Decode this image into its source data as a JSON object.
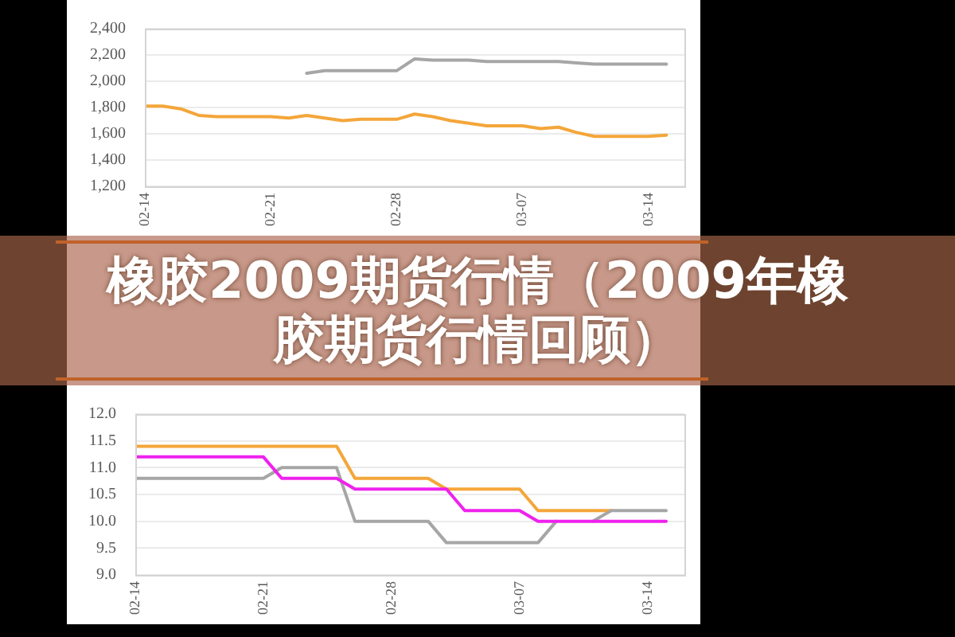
{
  "chart_data": [
    {
      "type": "line",
      "title": "橡胶2009期货行情（2009年橡胶期货行情回顾）",
      "x": [
        "--02-14",
        "--02-15",
        "--02-16",
        "--02-17",
        "--02-18",
        "--02-19",
        "--02-20",
        "--02-21",
        "--02-22",
        "--02-23",
        "--02-24",
        "--02-25",
        "--02-26",
        "--02-27",
        "--02-28",
        "--03-01",
        "--03-02",
        "--03-03",
        "--03-04",
        "--03-05",
        "--03-06",
        "--03-07",
        "--03-08",
        "--03-09",
        "--03-10",
        "--03-11",
        "--03-12",
        "--03-13",
        "--03-14",
        "--03-15"
      ],
      "series": [
        {
          "color": "#f4a63a",
          "values": [
            1810,
            1810,
            1790,
            1740,
            1730,
            1730,
            1730,
            1730,
            1720,
            1740,
            1720,
            1700,
            1710,
            1710,
            1710,
            1750,
            1730,
            1700,
            1680,
            1660,
            1660,
            1660,
            1640,
            1650,
            1610,
            1580,
            1580,
            1580,
            1580,
            1590
          ]
        },
        {
          "color": "#a6a6a6",
          "values": [
            null,
            null,
            null,
            null,
            null,
            null,
            null,
            null,
            null,
            2060,
            2080,
            2080,
            2080,
            2080,
            2080,
            2170,
            2160,
            2160,
            2160,
            2150,
            2150,
            2150,
            2150,
            2150,
            2140,
            2130,
            2130,
            2130,
            2130,
            2130
          ]
        }
      ],
      "xlim": [
        "--02-14",
        "--03-16"
      ],
      "xticks": [
        {
          "value": "--02-14",
          "label": "02-14"
        },
        {
          "value": "--02-21",
          "label": "02-21"
        },
        {
          "value": "--02-28",
          "label": "02-28"
        },
        {
          "value": "--03-07",
          "label": "03-07"
        },
        {
          "value": "--03-14",
          "label": "03-14"
        }
      ],
      "ylim": [
        1200,
        2400
      ],
      "yticks": [
        {
          "value": 1200,
          "label": "1,200"
        },
        {
          "value": 1400,
          "label": "1,400"
        },
        {
          "value": 1600,
          "label": "1,600"
        },
        {
          "value": 1800,
          "label": "1,800"
        },
        {
          "value": 2000,
          "label": "2,000"
        },
        {
          "value": 2200,
          "label": "2,200"
        },
        {
          "value": 2400,
          "label": "2,400"
        }
      ],
      "grid": "y"
    },
    {
      "type": "line",
      "x": [
        "--02-14",
        "--02-15",
        "--02-16",
        "--02-17",
        "--02-18",
        "--02-19",
        "--02-20",
        "--02-21",
        "--02-22",
        "--02-23",
        "--02-24",
        "--02-25",
        "--02-26",
        "--02-27",
        "--02-28",
        "--03-01",
        "--03-02",
        "--03-03",
        "--03-04",
        "--03-05",
        "--03-06",
        "--03-07",
        "--03-08",
        "--03-09",
        "--03-10",
        "--03-11",
        "--03-12",
        "--03-13",
        "--03-14",
        "--03-15"
      ],
      "series": [
        {
          "color": "#f4a63a",
          "values": [
            11.4,
            11.4,
            11.4,
            11.4,
            11.4,
            11.4,
            11.4,
            11.4,
            11.4,
            11.4,
            11.4,
            11.4,
            10.8,
            10.8,
            10.8,
            10.8,
            10.8,
            10.6,
            10.6,
            10.6,
            10.6,
            10.6,
            10.2,
            10.2,
            10.2,
            10.2,
            10.2,
            null,
            null,
            null
          ]
        },
        {
          "color": "#a6a6a6",
          "values": [
            10.8,
            10.8,
            10.8,
            10.8,
            10.8,
            10.8,
            10.8,
            10.8,
            11.0,
            11.0,
            11.0,
            11.0,
            10.0,
            10.0,
            10.0,
            10.0,
            10.0,
            9.6,
            9.6,
            9.6,
            9.6,
            9.6,
            9.6,
            10.0,
            null,
            10.0,
            10.2,
            10.2,
            10.2,
            10.2
          ]
        },
        {
          "color": "#ee22ee",
          "values": [
            11.2,
            11.2,
            11.2,
            11.2,
            11.2,
            11.2,
            11.2,
            11.2,
            10.8,
            10.8,
            10.8,
            10.8,
            10.6,
            10.6,
            10.6,
            10.6,
            10.6,
            10.6,
            10.2,
            10.2,
            10.2,
            10.2,
            10.0,
            10.0,
            10.0,
            10.0,
            10.0,
            10.0,
            10.0,
            10.0
          ]
        }
      ],
      "xlim": [
        "--02-14",
        "--03-16"
      ],
      "xticks": [
        {
          "value": "--02-14",
          "label": "02-14"
        },
        {
          "value": "--02-21",
          "label": "02-21"
        },
        {
          "value": "--02-28",
          "label": "02-28"
        },
        {
          "value": "--03-07",
          "label": "03-07"
        },
        {
          "value": "--03-14",
          "label": "03-14"
        }
      ],
      "ylim": [
        9,
        12
      ],
      "yticks": [
        {
          "value": 9,
          "label": "9.0"
        },
        {
          "value": 9.5,
          "label": "9.5"
        },
        {
          "value": 10,
          "label": "10.0"
        },
        {
          "value": 10.5,
          "label": "10.5"
        },
        {
          "value": 11,
          "label": "11.0"
        },
        {
          "value": 11.5,
          "label": "11.5"
        },
        {
          "value": 12,
          "label": "12.0"
        }
      ],
      "grid": "y"
    }
  ]
}
